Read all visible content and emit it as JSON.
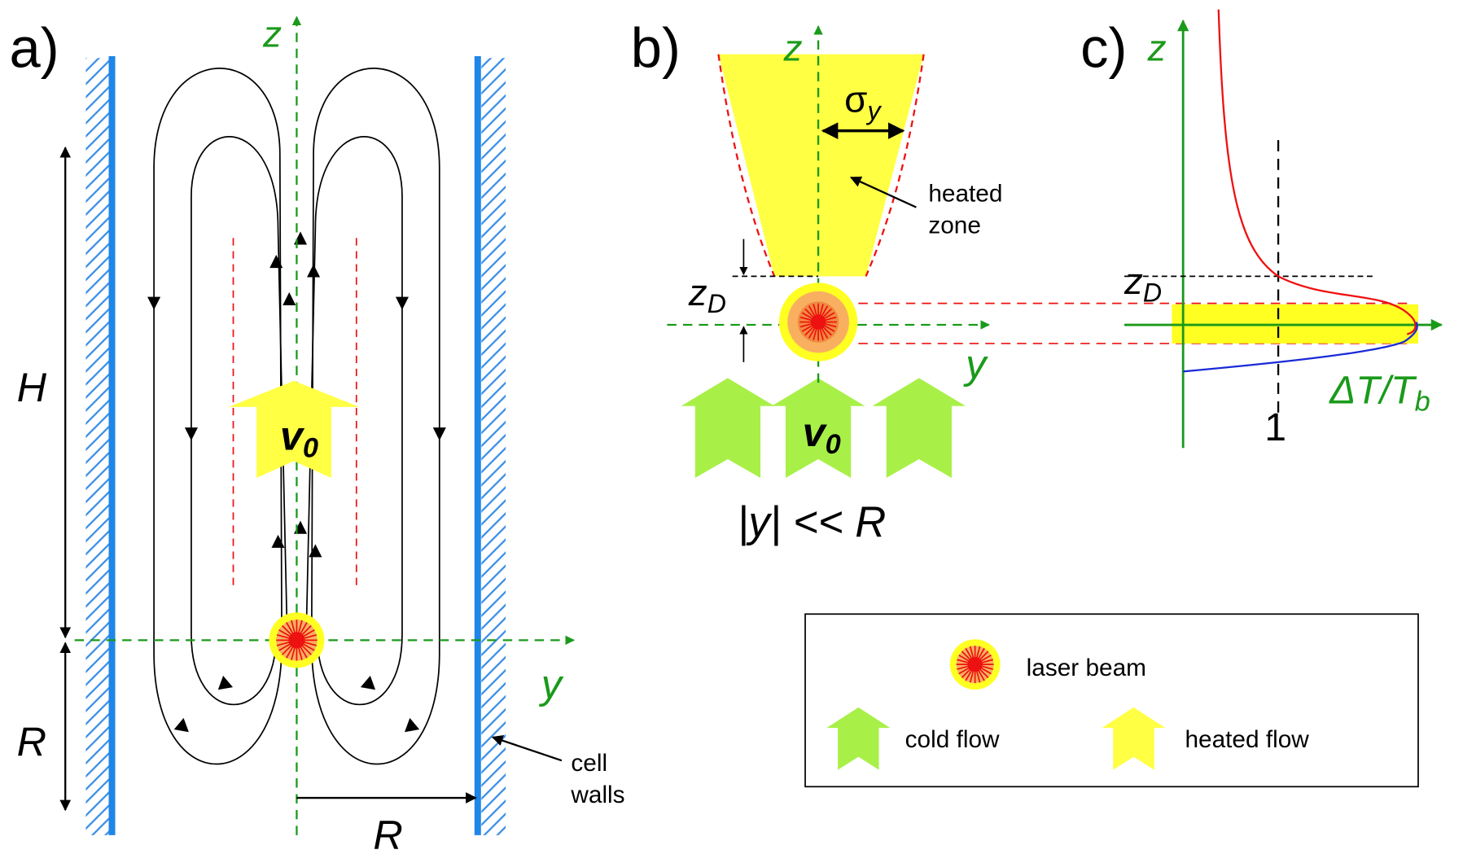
{
  "panel_a": {
    "label": "a)",
    "z_axis": "z",
    "y_axis": "y",
    "height_label": "H",
    "radius_label": "R",
    "radius_label_bottom": "R",
    "walls_label": [
      "cell",
      "walls"
    ],
    "velocity": {
      "symbol": "v",
      "subscript": "0"
    }
  },
  "panel_b": {
    "label": "b)",
    "z_axis": "z",
    "y_axis": "y",
    "sigma": {
      "symbol": "σ",
      "subscript": "y"
    },
    "zone_label": [
      "heated",
      "zone"
    ],
    "zd": {
      "symbol": "z",
      "subscript": "D"
    },
    "velocity": {
      "symbol": "v",
      "subscript": "0"
    },
    "condition": "|y| << R"
  },
  "panel_c": {
    "label": "c)",
    "z_axis": "z",
    "zd": {
      "symbol": "z",
      "subscript": "D"
    },
    "x_axis": {
      "symbol": "ΔT/T",
      "subscript": "b"
    },
    "tick": "1"
  },
  "legend": {
    "items": [
      "laser beam",
      "cold flow",
      "heated flow"
    ]
  }
}
